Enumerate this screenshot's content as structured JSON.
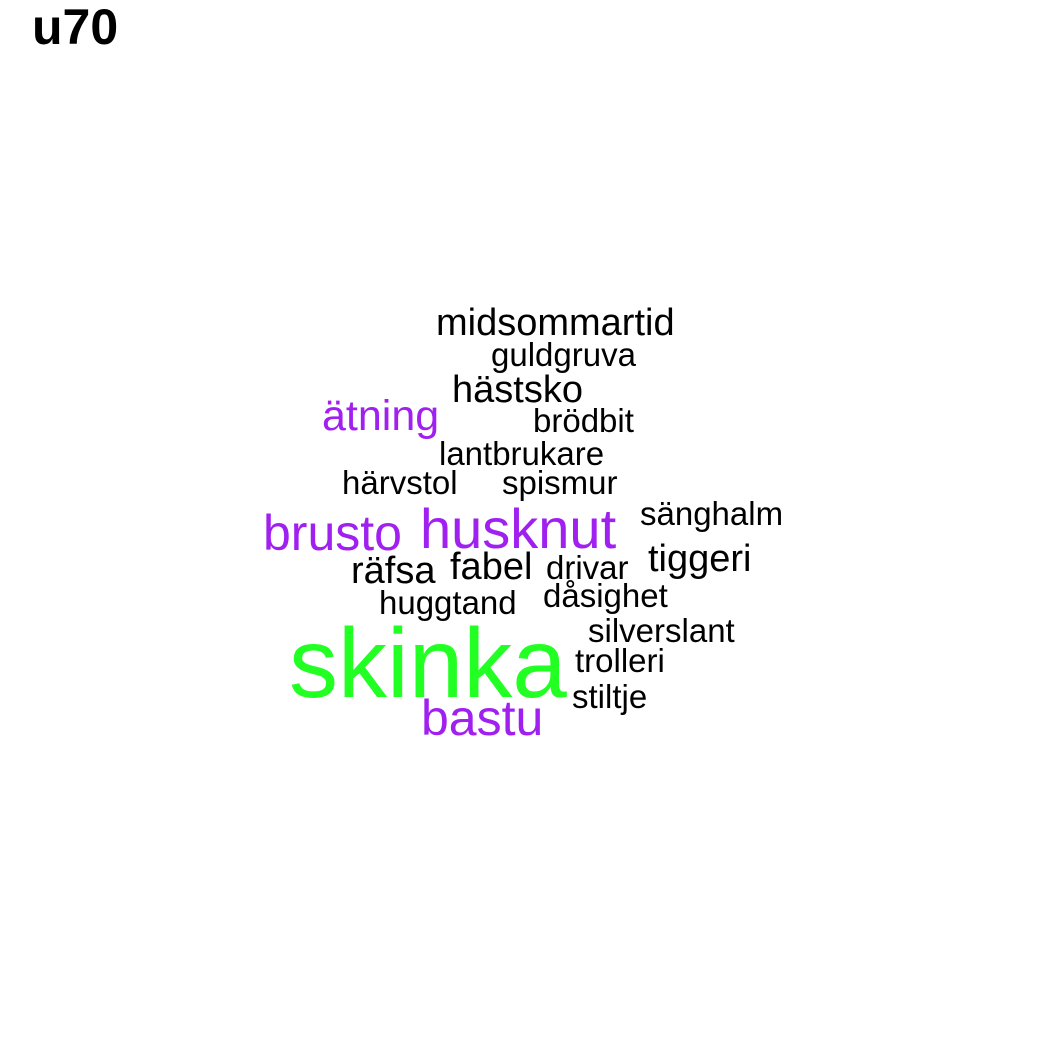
{
  "title": "u70",
  "colors": {
    "black": "#000000",
    "purple": "#a020f0",
    "green": "#22ff22"
  },
  "words": [
    {
      "text": "midsommartid",
      "color": "black"
    },
    {
      "text": "guldgruva",
      "color": "black"
    },
    {
      "text": "hästsko",
      "color": "black"
    },
    {
      "text": "ätning",
      "color": "purple"
    },
    {
      "text": "brödbit",
      "color": "black"
    },
    {
      "text": "lantbrukare",
      "color": "black"
    },
    {
      "text": "härvstol",
      "color": "black"
    },
    {
      "text": "spismur",
      "color": "black"
    },
    {
      "text": "sänghalm",
      "color": "black"
    },
    {
      "text": "brusto",
      "color": "purple"
    },
    {
      "text": "husknut",
      "color": "purple"
    },
    {
      "text": "räfsa",
      "color": "black"
    },
    {
      "text": "fabel",
      "color": "black"
    },
    {
      "text": "drivar",
      "color": "black"
    },
    {
      "text": "tiggeri",
      "color": "black"
    },
    {
      "text": "huggtand",
      "color": "black"
    },
    {
      "text": "dåsighet",
      "color": "black"
    },
    {
      "text": "silverslant",
      "color": "black"
    },
    {
      "text": "skinka",
      "color": "green"
    },
    {
      "text": "trolleri",
      "color": "black"
    },
    {
      "text": "stiltje",
      "color": "black"
    },
    {
      "text": "bastu",
      "color": "purple"
    }
  ]
}
